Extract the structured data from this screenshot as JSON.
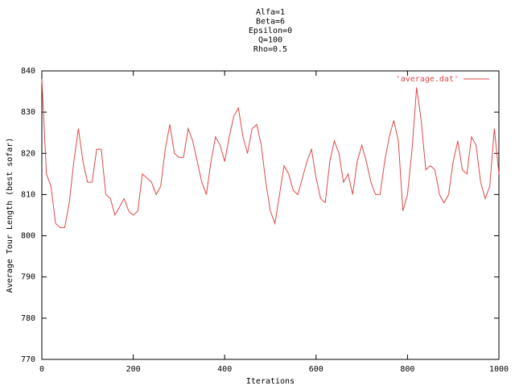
{
  "chart_data": {
    "type": "line",
    "title": [
      "Alfa=1",
      "Beta=6",
      "Epsilon=0",
      "Q=100",
      "Rho=0.5"
    ],
    "x_label": "Iterations",
    "y_label": "Average Tour Length (best sofar)",
    "x": [
      0,
      10,
      20,
      30,
      40,
      50,
      60,
      70,
      80,
      90,
      100,
      110,
      120,
      130,
      140,
      150,
      160,
      170,
      180,
      190,
      200,
      210,
      220,
      230,
      240,
      250,
      260,
      270,
      280,
      290,
      300,
      310,
      320,
      330,
      340,
      350,
      360,
      370,
      380,
      390,
      400,
      410,
      420,
      430,
      440,
      450,
      460,
      470,
      480,
      490,
      500,
      510,
      520,
      530,
      540,
      550,
      560,
      570,
      580,
      590,
      600,
      610,
      620,
      630,
      640,
      650,
      660,
      670,
      680,
      690,
      700,
      710,
      720,
      730,
      740,
      750,
      760,
      770,
      780,
      790,
      800,
      810,
      820,
      830,
      840,
      850,
      860,
      870,
      880,
      890,
      900,
      910,
      920,
      930,
      940,
      950,
      960,
      970,
      980,
      990,
      1000
    ],
    "series": [
      {
        "name": "'average.dat'",
        "color": "#e04848",
        "values": [
          838,
          815,
          812,
          803,
          802,
          802,
          808,
          818,
          826,
          818,
          813,
          813,
          821,
          821,
          810,
          809,
          805,
          807,
          809,
          806,
          805,
          806,
          815,
          814,
          813,
          810,
          812,
          821,
          827,
          820,
          819,
          819,
          826,
          823,
          818,
          813,
          810,
          818,
          824,
          822,
          818,
          824,
          829,
          831,
          824,
          820,
          826,
          827,
          822,
          813,
          806,
          803,
          810,
          817,
          815,
          811,
          810,
          814,
          818,
          821,
          814,
          809,
          808,
          818,
          823,
          820,
          813,
          815,
          810,
          818,
          822,
          818,
          813,
          810,
          810,
          818,
          824,
          828,
          823,
          806,
          810,
          821,
          836,
          828,
          816,
          817,
          816,
          810,
          808,
          810,
          818,
          823,
          816,
          815,
          824,
          822,
          813,
          809,
          812,
          826,
          815
        ]
      }
    ],
    "xlim": [
      0,
      1000
    ],
    "ylim": [
      770,
      840
    ],
    "xticks": [
      0,
      200,
      400,
      600,
      800,
      1000
    ],
    "yticks": [
      770,
      780,
      790,
      800,
      810,
      820,
      830,
      840
    ],
    "legend": "top-right",
    "grid": false
  }
}
